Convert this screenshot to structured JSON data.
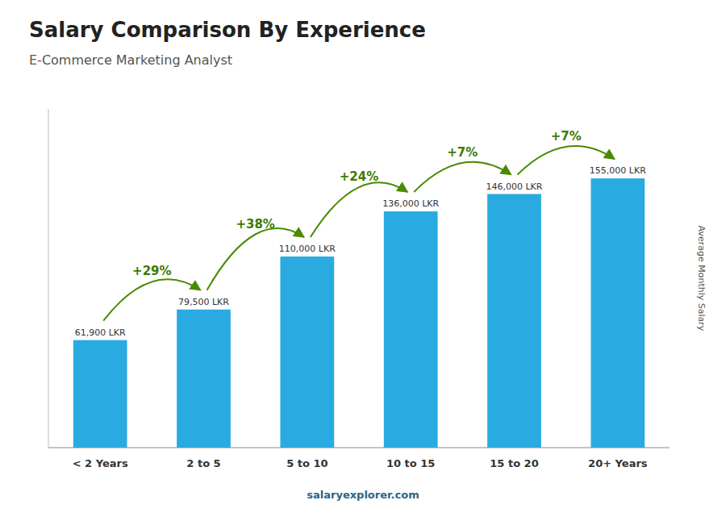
{
  "chart_data": {
    "type": "bar",
    "title": "Salary Comparison By Experience",
    "subtitle": "E-Commerce Marketing Analyst",
    "categories": [
      "< 2 Years",
      "2 to 5",
      "5 to 10",
      "10 to 15",
      "15 to 20",
      "20+ Years"
    ],
    "values": [
      61900,
      79500,
      110000,
      136000,
      146000,
      155000
    ],
    "value_labels": [
      "61,900 LKR",
      "79,500 LKR",
      "110,000 LKR",
      "136,000 LKR",
      "146,000 LKR",
      "155,000 LKR"
    ],
    "data_labels": true,
    "annotations": [
      "+29%",
      "+38%",
      "+24%",
      "+7%",
      "+7%"
    ],
    "footer": "salaryexplorer.com",
    "y_label": "Average Monthly Salary",
    "color": "#29ABE2",
    "ylim": [
      0,
      195000
    ],
    "tick_labels": "x",
    "grid": false
  }
}
